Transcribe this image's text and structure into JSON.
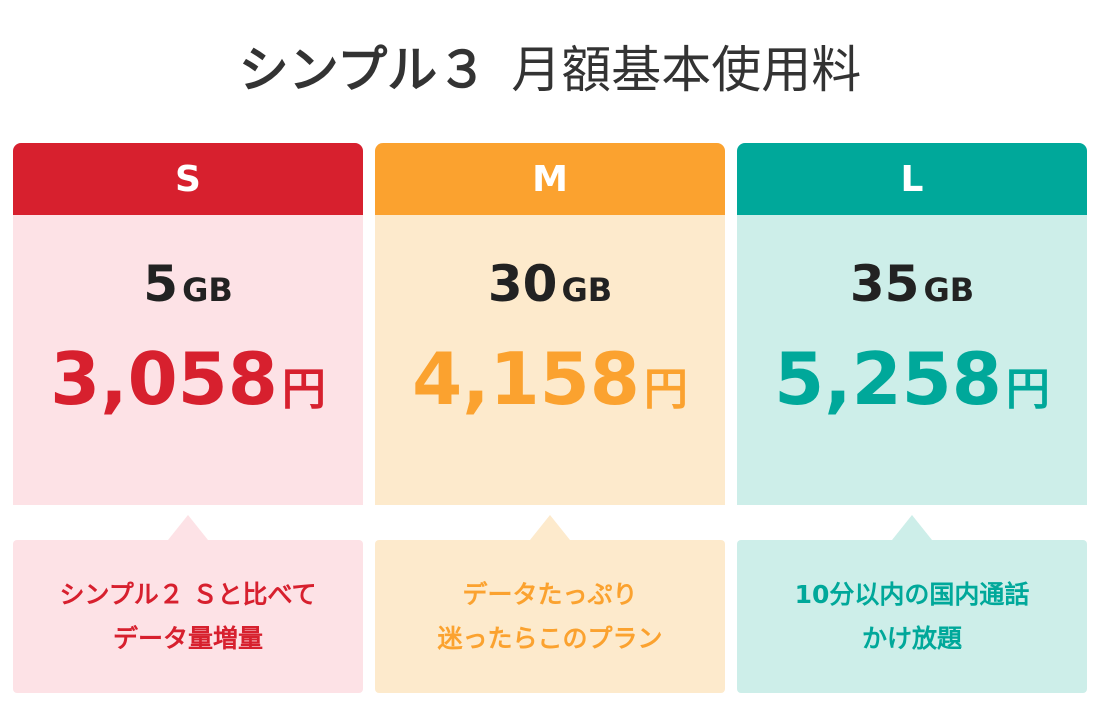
{
  "header": {
    "title_main": "シンプル３",
    "title_sub": "月額基本使用料"
  },
  "plans": [
    {
      "name": "S",
      "data": "5",
      "data_unit": "GB",
      "price": "3,058",
      "price_unit": "円",
      "note": [
        "シンプル２ Ｓと比べて",
        "データ量増量"
      ]
    },
    {
      "name": "M",
      "data": "30",
      "data_unit": "GB",
      "price": "4,158",
      "price_unit": "円",
      "note": [
        "データたっぷり",
        "迷ったらこのプラン"
      ]
    },
    {
      "name": "L",
      "data": "35",
      "data_unit": "GB",
      "price": "5,258",
      "price_unit": "円",
      "note": [
        "10分以内の国内通話",
        "かけ放題"
      ]
    }
  ]
}
